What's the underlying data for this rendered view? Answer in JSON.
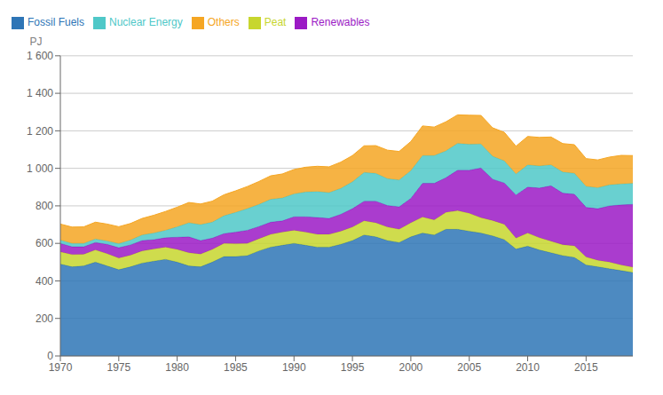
{
  "chart_data": {
    "type": "area",
    "stacked": true,
    "ylabel": "PJ",
    "x": [
      1970,
      1971,
      1972,
      1973,
      1974,
      1975,
      1976,
      1977,
      1978,
      1979,
      1980,
      1981,
      1982,
      1983,
      1984,
      1985,
      1986,
      1987,
      1988,
      1989,
      1990,
      1991,
      1992,
      1993,
      1994,
      1995,
      1996,
      1997,
      1998,
      1999,
      2000,
      2001,
      2002,
      2003,
      2004,
      2005,
      2006,
      2007,
      2008,
      2009,
      2010,
      2011,
      2012,
      2013,
      2014,
      2015,
      2016,
      2017,
      2018,
      2019
    ],
    "series": [
      {
        "name": "Fossil Fuels",
        "color": "#2E75B6",
        "values": [
          490,
          475,
          480,
          500,
          480,
          460,
          475,
          495,
          505,
          515,
          500,
          480,
          475,
          500,
          530,
          530,
          535,
          560,
          580,
          590,
          600,
          590,
          580,
          580,
          595,
          615,
          645,
          635,
          615,
          605,
          635,
          655,
          645,
          675,
          675,
          665,
          655,
          640,
          620,
          570,
          585,
          565,
          550,
          535,
          525,
          485,
          475,
          465,
          455,
          445
        ]
      },
      {
        "name": "Peat",
        "color": "#C7D62E",
        "values": [
          65,
          65,
          62,
          65,
          65,
          62,
          62,
          65,
          65,
          65,
          68,
          70,
          68,
          68,
          70,
          68,
          65,
          65,
          68,
          70,
          70,
          70,
          68,
          68,
          70,
          72,
          75,
          75,
          72,
          70,
          75,
          85,
          80,
          90,
          100,
          95,
          82,
          82,
          82,
          58,
          70,
          65,
          62,
          58,
          62,
          42,
          35,
          35,
          30,
          28
        ]
      },
      {
        "name": "Renewables",
        "color": "#9B1AC5",
        "values": [
          45,
          42,
          40,
          40,
          50,
          55,
          55,
          55,
          50,
          50,
          65,
          85,
          72,
          60,
          52,
          62,
          70,
          65,
          65,
          60,
          72,
          82,
          90,
          85,
          90,
          98,
          105,
          115,
          115,
          120,
          130,
          180,
          195,
          185,
          215,
          230,
          265,
          220,
          220,
          230,
          245,
          265,
          295,
          275,
          275,
          265,
          275,
          300,
          320,
          335
        ]
      },
      {
        "name": "Nuclear Energy",
        "color": "#4FC8C8",
        "values": [
          18,
          18,
          18,
          18,
          18,
          22,
          26,
          30,
          35,
          40,
          55,
          75,
          85,
          85,
          95,
          105,
          115,
          118,
          122,
          122,
          122,
          132,
          138,
          138,
          138,
          143,
          153,
          148,
          143,
          143,
          148,
          148,
          148,
          143,
          143,
          138,
          128,
          122,
          118,
          112,
          118,
          118,
          112,
          112,
          112,
          112,
          112,
          112,
          112,
          112
        ]
      },
      {
        "name": "Others",
        "color": "#F5A623",
        "values": [
          85,
          87,
          88,
          90,
          90,
          90,
          88,
          88,
          95,
          100,
          105,
          108,
          110,
          112,
          112,
          115,
          118,
          122,
          125,
          128,
          130,
          132,
          135,
          137,
          140,
          140,
          142,
          148,
          152,
          152,
          155,
          158,
          152,
          155,
          152,
          155,
          152,
          152,
          152,
          148,
          152,
          152,
          148,
          152,
          152,
          148,
          148,
          148,
          152,
          148
        ]
      }
    ],
    "xlim": [
      1970,
      2019
    ],
    "xticks": [
      1970,
      1975,
      1980,
      1985,
      1990,
      1995,
      2000,
      2005,
      2010,
      2015
    ],
    "ylim": [
      0,
      1600
    ],
    "yticks": [
      0,
      200,
      400,
      600,
      800,
      {
        "value": 1000,
        "label": "1 000"
      },
      {
        "value": 1200,
        "label": "1 200"
      },
      {
        "value": 1400,
        "label": "1 400"
      },
      {
        "value": 1600,
        "label": "1 600"
      }
    ],
    "grid": true,
    "legend": "upper left"
  }
}
